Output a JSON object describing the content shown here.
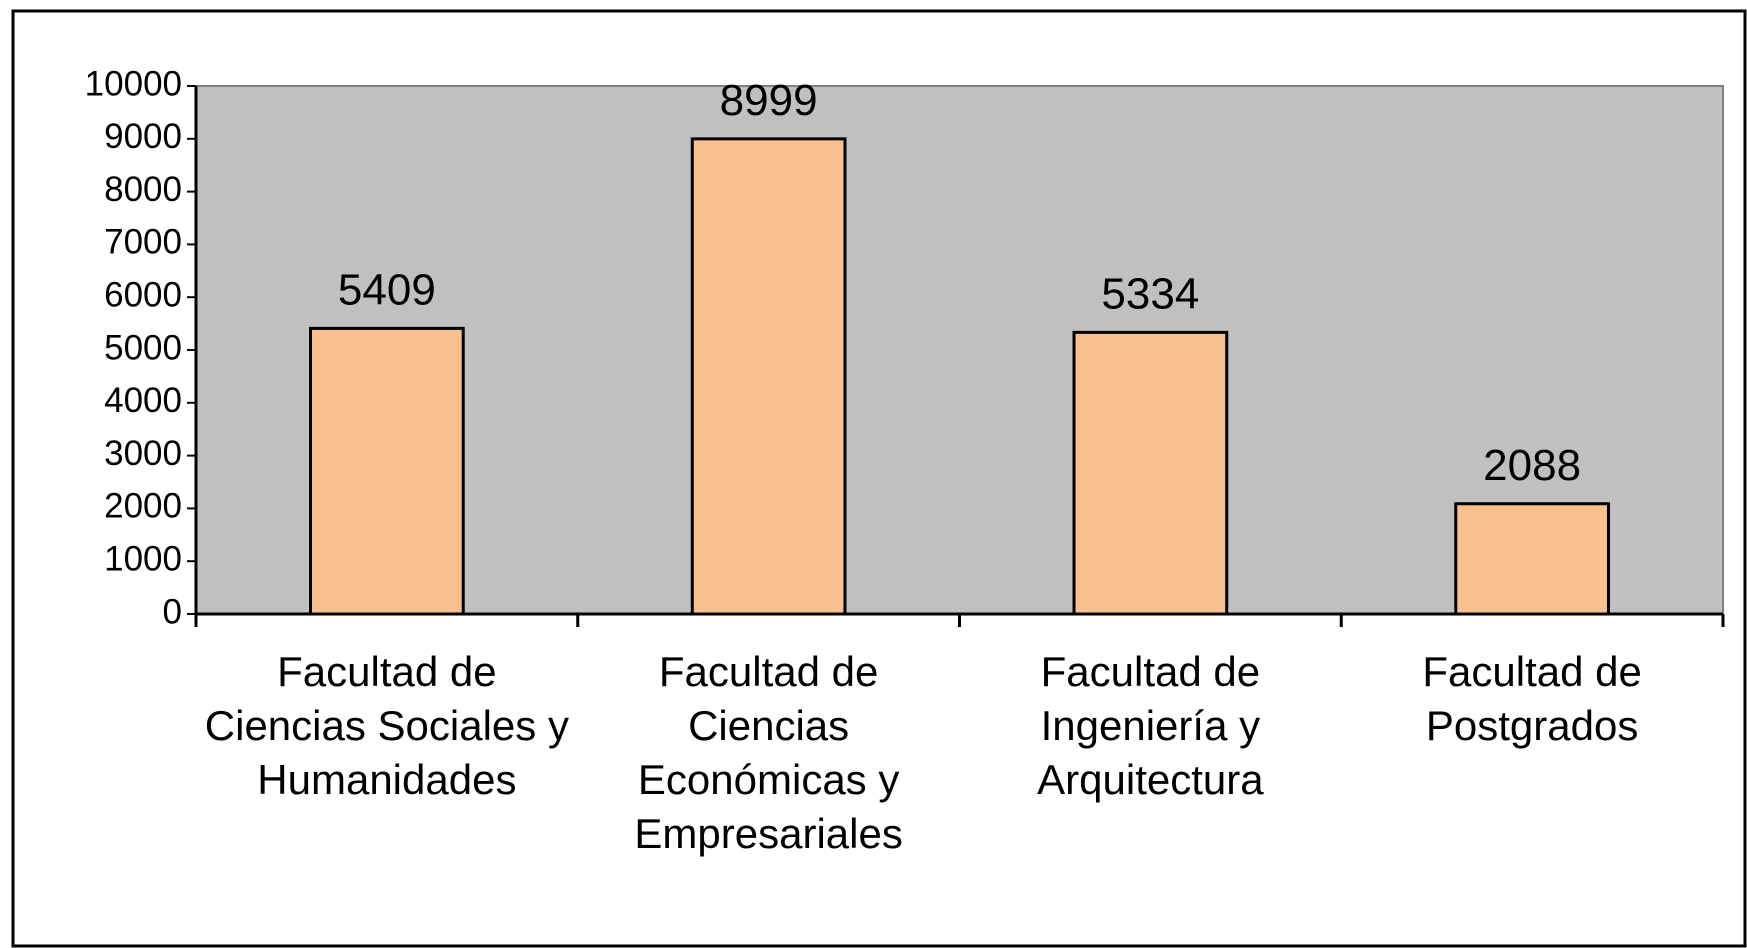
{
  "chart_data": {
    "type": "bar",
    "categories": [
      "Facultad de Ciencias Sociales y Humanidades",
      "Facultad de Ciencias Económicas y Empresariales",
      "Facultad de Ingeniería y Arquitectura",
      "Facultad de Postgrados"
    ],
    "values": [
      5409,
      8999,
      5334,
      2088
    ],
    "color": "#f9c08f",
    "ylim": [
      0,
      10000
    ],
    "yticks": [
      0,
      1000,
      2000,
      3000,
      4000,
      5000,
      6000,
      7000,
      8000,
      9000,
      10000
    ],
    "grid": false,
    "plot_background": "#c0c0c0"
  }
}
